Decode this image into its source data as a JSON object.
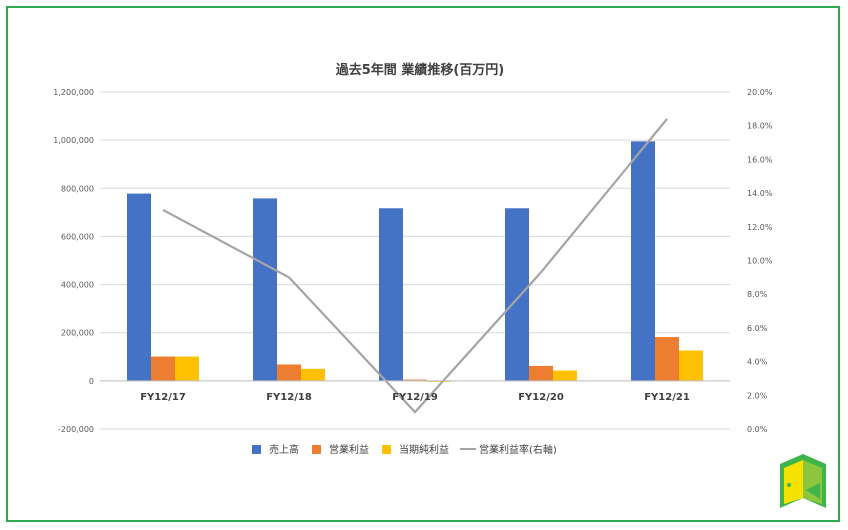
{
  "chart_data": {
    "type": "bar",
    "title": "過去5年間 業績推移(百万円)",
    "categories": [
      "FY12/17",
      "FY12/18",
      "FY12/19",
      "FY12/20",
      "FY12/21"
    ],
    "series": [
      {
        "name": "売上高",
        "type": "bar",
        "axis": "left",
        "color": "#4472c4",
        "values": [
          778000,
          758000,
          717000,
          717000,
          995000
        ]
      },
      {
        "name": "営業利益",
        "type": "bar",
        "axis": "left",
        "color": "#ed7d31",
        "values": [
          101000,
          68000,
          5000,
          62000,
          182000
        ]
      },
      {
        "name": "当期純利益",
        "type": "bar",
        "axis": "left",
        "color": "#ffc000",
        "values": [
          101000,
          50000,
          -3000,
          43000,
          126000
        ]
      },
      {
        "name": "営業利益率(右軸)",
        "type": "line",
        "axis": "right",
        "color": "#a5a5a5",
        "values": [
          13.0,
          9.0,
          1.0,
          9.3,
          18.4
        ]
      }
    ],
    "y_left": {
      "min": -200000,
      "max": 1200000,
      "step": 200000,
      "tick_labels": [
        "-200,000",
        "0",
        "200,000",
        "400,000",
        "600,000",
        "800,000",
        "1,000,000",
        "1,200,000"
      ]
    },
    "y_right": {
      "min": 0,
      "max": 20,
      "step": 2,
      "tick_labels": [
        "0.0%",
        "2.0%",
        "4.0%",
        "6.0%",
        "8.0%",
        "10.0%",
        "12.0%",
        "14.0%",
        "16.0%",
        "18.0%",
        "20.0%"
      ]
    },
    "grid": true,
    "legend_position": "bottom"
  },
  "colors": {
    "frame_border": "#2fa84f",
    "gridline": "#d9d9d9",
    "axis_text": "#595959"
  },
  "logo": {
    "icon": "door-logo-icon"
  }
}
